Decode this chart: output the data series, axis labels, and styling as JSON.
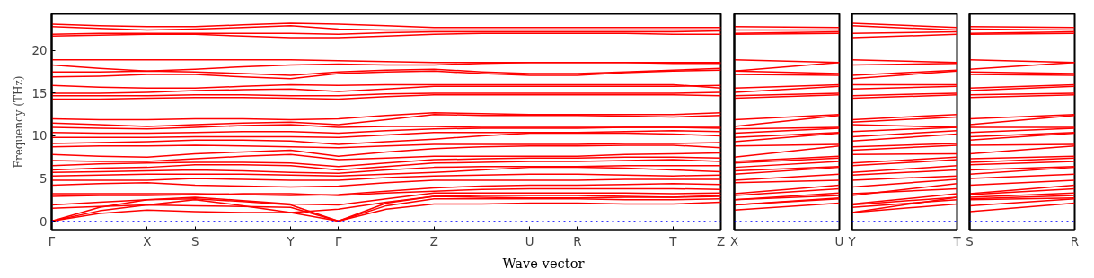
{
  "chart_data": [
    {
      "type": "line",
      "ylabel": "Frequency (THz)",
      "xlabel": "Wave vector",
      "ylim": [
        -1.05,
        24.3
      ],
      "yticks": [
        0,
        5,
        10,
        15,
        20
      ],
      "categories": [
        "Γ",
        null,
        "X",
        "S",
        null,
        "Y",
        "Γ",
        null,
        "Z",
        null,
        "U",
        "R",
        null,
        "T",
        "Z"
      ],
      "ref_lines": [
        {
          "axis": "y",
          "value": 0,
          "color": "#0000ff",
          "line_style": "dotted"
        }
      ],
      "series": [
        {
          "color": "#ff0000",
          "values": [
            0,
            0.9,
            1.3,
            1.1,
            1.0,
            1.0,
            0,
            1.4,
            2.0,
            2.0,
            2.1,
            2.1,
            2.0,
            2.0,
            2.2
          ]
        },
        {
          "color": "#ff0000",
          "values": [
            0,
            1.2,
            1.9,
            1.8,
            1.7,
            1.6,
            0,
            1.8,
            2.6,
            2.6,
            2.6,
            2.6,
            2.5,
            2.5,
            2.6
          ]
        },
        {
          "color": "#ff0000",
          "values": [
            0,
            1.6,
            2.5,
            2.6,
            2.3,
            1.9,
            0,
            2.1,
            2.9,
            3.0,
            3.0,
            3.0,
            2.9,
            2.8,
            2.9
          ]
        },
        {
          "color": "#ff0000",
          "values": [
            1.5,
            1.7,
            1.9,
            2.5,
            1.8,
            1.0,
            1.4,
            2.2,
            2.9,
            2.8,
            2.7,
            2.7,
            2.8,
            2.8,
            3.0
          ]
        },
        {
          "color": "#ff0000",
          "values": [
            1.9,
            2.2,
            2.5,
            2.8,
            2.4,
            2.0,
            1.9,
            2.6,
            3.3,
            3.3,
            3.3,
            3.3,
            3.3,
            3.2,
            3.3
          ]
        },
        {
          "color": "#ff0000",
          "values": [
            2.9,
            3.0,
            3.0,
            3.1,
            3.2,
            3.2,
            3.0,
            3.3,
            3.5,
            3.7,
            3.8,
            3.8,
            3.8,
            3.8,
            3.7
          ]
        },
        {
          "color": "#ff0000",
          "values": [
            3.2,
            3.2,
            3.2,
            3.2,
            3.1,
            3.0,
            3.1,
            3.5,
            3.9,
            4.1,
            4.2,
            4.2,
            4.3,
            4.4,
            4.3
          ]
        },
        {
          "color": "#ff0000",
          "values": [
            4.2,
            4.4,
            4.5,
            4.2,
            4.1,
            4.0,
            4.1,
            4.5,
            4.8,
            4.8,
            4.8,
            4.8,
            4.9,
            4.9,
            4.9
          ]
        },
        {
          "color": "#ff0000",
          "values": [
            4.8,
            4.8,
            4.8,
            5.0,
            4.9,
            4.8,
            4.8,
            5.1,
            5.3,
            5.4,
            5.5,
            5.5,
            5.4,
            5.3,
            5.4
          ]
        },
        {
          "color": "#ff0000",
          "values": [
            5.3,
            5.4,
            5.5,
            5.5,
            5.5,
            5.4,
            5.3,
            5.5,
            5.7,
            6.0,
            6.3,
            6.3,
            6.2,
            6.0,
            5.8
          ]
        },
        {
          "color": "#ff0000",
          "values": [
            5.7,
            5.8,
            5.9,
            6.0,
            5.9,
            5.7,
            5.6,
            6.0,
            6.3,
            6.4,
            6.4,
            6.4,
            6.5,
            6.5,
            6.5
          ]
        },
        {
          "color": "#ff0000",
          "values": [
            6.0,
            6.2,
            6.3,
            6.6,
            6.6,
            6.5,
            6.0,
            6.4,
            6.8,
            6.9,
            7.0,
            7.0,
            7.1,
            7.2,
            7.0
          ]
        },
        {
          "color": "#ff0000",
          "values": [
            6.5,
            6.7,
            6.8,
            6.9,
            6.9,
            6.8,
            6.4,
            6.8,
            7.2,
            7.3,
            7.4,
            7.4,
            7.5,
            7.5,
            7.4
          ]
        },
        {
          "color": "#ff0000",
          "values": [
            7.1,
            7.0,
            7.0,
            7.3,
            7.6,
            7.8,
            7.2,
            7.4,
            7.6,
            7.6,
            7.6,
            7.6,
            7.8,
            7.9,
            8.0
          ]
        },
        {
          "color": "#ff0000",
          "values": [
            7.8,
            7.6,
            7.5,
            7.9,
            8.1,
            8.3,
            7.6,
            8.1,
            8.5,
            8.7,
            8.8,
            8.8,
            8.9,
            8.9,
            8.6
          ]
        },
        {
          "color": "#ff0000",
          "values": [
            8.7,
            8.8,
            8.8,
            8.9,
            8.8,
            8.7,
            8.6,
            8.8,
            9.0,
            9.0,
            9.0,
            9.0,
            9.1,
            9.1,
            9.2
          ]
        },
        {
          "color": "#ff0000",
          "values": [
            9.1,
            9.2,
            9.3,
            9.5,
            9.5,
            9.4,
            9.0,
            9.3,
            9.6,
            10.0,
            10.3,
            10.3,
            10.3,
            10.2,
            10.0
          ]
        },
        {
          "color": "#ff0000",
          "values": [
            9.8,
            9.8,
            9.8,
            9.9,
            9.9,
            9.9,
            9.8,
            10.1,
            10.4,
            10.4,
            10.4,
            10.4,
            10.5,
            10.6,
            10.5
          ]
        },
        {
          "color": "#ff0000",
          "values": [
            10.4,
            10.3,
            10.3,
            10.4,
            10.5,
            10.5,
            10.3,
            10.6,
            10.8,
            10.9,
            10.9,
            10.9,
            11.0,
            11.0,
            10.9
          ]
        },
        {
          "color": "#ff0000",
          "values": [
            11.0,
            10.9,
            10.8,
            11.0,
            11.2,
            11.3,
            11.0,
            11.1,
            11.1,
            11.0,
            11.0,
            11.0,
            11.0,
            11.0,
            11.0
          ]
        },
        {
          "color": "#ff0000",
          "values": [
            11.5,
            11.3,
            11.1,
            11.3,
            11.5,
            11.6,
            11.3,
            11.9,
            12.5,
            12.4,
            12.4,
            12.4,
            12.3,
            12.2,
            12.4
          ]
        },
        {
          "color": "#ff0000",
          "values": [
            12.0,
            11.9,
            11.9,
            12.0,
            12.0,
            11.9,
            12.0,
            12.4,
            12.7,
            12.6,
            12.5,
            12.5,
            12.5,
            12.5,
            12.7
          ]
        },
        {
          "color": "#ff0000",
          "values": [
            14.3,
            14.3,
            14.4,
            14.5,
            14.5,
            14.4,
            14.3,
            14.6,
            14.8,
            14.8,
            14.8,
            14.8,
            14.8,
            14.8,
            14.7
          ]
        },
        {
          "color": "#ff0000",
          "values": [
            14.7,
            14.7,
            14.7,
            14.8,
            14.8,
            14.7,
            14.7,
            14.9,
            15.0,
            15.0,
            15.0,
            15.0,
            15.0,
            15.0,
            15.1
          ]
        },
        {
          "color": "#ff0000",
          "values": [
            15.0,
            15.0,
            15.1,
            15.3,
            15.4,
            15.5,
            15.2,
            15.5,
            15.8,
            15.8,
            15.8,
            15.8,
            15.8,
            15.8,
            15.9
          ]
        },
        {
          "color": "#ff0000",
          "values": [
            15.9,
            15.7,
            15.6,
            15.6,
            15.8,
            16.0,
            15.9,
            16.0,
            16.0,
            16.0,
            16.0,
            16.0,
            16.0,
            16.0,
            15.6
          ]
        },
        {
          "color": "#ff0000",
          "values": [
            16.9,
            17.0,
            17.2,
            17.2,
            16.9,
            16.7,
            17.3,
            17.5,
            17.6,
            17.3,
            17.1,
            17.1,
            17.4,
            17.6,
            17.7
          ]
        },
        {
          "color": "#ff0000",
          "values": [
            17.5,
            17.5,
            17.6,
            17.5,
            17.3,
            17.1,
            17.5,
            17.7,
            17.8,
            17.5,
            17.3,
            17.3,
            17.5,
            17.7,
            17.9
          ]
        },
        {
          "color": "#ff0000",
          "values": [
            18.3,
            17.9,
            17.6,
            17.8,
            18.1,
            18.3,
            18.4,
            18.3,
            18.3,
            18.5,
            18.6,
            18.6,
            18.6,
            18.5,
            18.5
          ]
        },
        {
          "color": "#ff0000",
          "values": [
            18.9,
            18.9,
            18.9,
            18.9,
            18.9,
            18.9,
            18.8,
            18.7,
            18.6,
            18.6,
            18.6,
            18.6,
            18.6,
            18.6,
            18.6
          ]
        },
        {
          "color": "#ff0000",
          "values": [
            21.7,
            21.8,
            21.9,
            21.9,
            21.7,
            21.5,
            21.5,
            21.7,
            21.9,
            22.0,
            22.0,
            22.0,
            22.0,
            21.9,
            21.9
          ]
        },
        {
          "color": "#ff0000",
          "values": [
            21.9,
            22.0,
            22.0,
            22.0,
            22.0,
            22.0,
            21.9,
            22.1,
            22.2,
            22.2,
            22.2,
            22.2,
            22.2,
            22.2,
            22.3
          ]
        },
        {
          "color": "#ff0000",
          "values": [
            22.8,
            22.6,
            22.4,
            22.5,
            22.7,
            22.9,
            22.5,
            22.4,
            22.4,
            22.4,
            22.4,
            22.4,
            22.4,
            22.4,
            22.4
          ]
        },
        {
          "color": "#ff0000",
          "values": [
            23.1,
            22.9,
            22.8,
            22.8,
            23.0,
            23.2,
            23.1,
            22.9,
            22.7,
            22.7,
            22.7,
            22.7,
            22.7,
            22.7,
            22.7
          ]
        }
      ]
    },
    {
      "type": "line",
      "tick_labels": "x",
      "ylim": [
        -1.05,
        24.3
      ],
      "yticks": [
        0,
        5,
        10,
        15,
        20
      ],
      "categories": [
        "X",
        "U"
      ],
      "ref_lines": [
        {
          "axis": "y",
          "value": 0,
          "color": "#0000ff",
          "line_style": "dotted"
        }
      ],
      "series": [
        {
          "color": "#ff0000",
          "values": [
            1.3,
            2.1
          ]
        },
        {
          "color": "#ff0000",
          "values": [
            1.9,
            2.6
          ]
        },
        {
          "color": "#ff0000",
          "values": [
            2.5,
            3.0
          ]
        },
        {
          "color": "#ff0000",
          "values": [
            1.9,
            2.7
          ]
        },
        {
          "color": "#ff0000",
          "values": [
            2.5,
            3.3
          ]
        },
        {
          "color": "#ff0000",
          "values": [
            3.0,
            3.8
          ]
        },
        {
          "color": "#ff0000",
          "values": [
            3.2,
            4.2
          ]
        },
        {
          "color": "#ff0000",
          "values": [
            4.5,
            4.8
          ]
        },
        {
          "color": "#ff0000",
          "values": [
            4.8,
            5.5
          ]
        },
        {
          "color": "#ff0000",
          "values": [
            5.5,
            6.3
          ]
        },
        {
          "color": "#ff0000",
          "values": [
            5.9,
            6.4
          ]
        },
        {
          "color": "#ff0000",
          "values": [
            6.3,
            7.0
          ]
        },
        {
          "color": "#ff0000",
          "values": [
            6.8,
            7.4
          ]
        },
        {
          "color": "#ff0000",
          "values": [
            7.0,
            7.6
          ]
        },
        {
          "color": "#ff0000",
          "values": [
            7.5,
            8.8
          ]
        },
        {
          "color": "#ff0000",
          "values": [
            8.8,
            9.0
          ]
        },
        {
          "color": "#ff0000",
          "values": [
            9.3,
            10.3
          ]
        },
        {
          "color": "#ff0000",
          "values": [
            9.8,
            10.4
          ]
        },
        {
          "color": "#ff0000",
          "values": [
            10.3,
            10.9
          ]
        },
        {
          "color": "#ff0000",
          "values": [
            10.8,
            11.0
          ]
        },
        {
          "color": "#ff0000",
          "values": [
            11.1,
            12.4
          ]
        },
        {
          "color": "#ff0000",
          "values": [
            11.9,
            12.5
          ]
        },
        {
          "color": "#ff0000",
          "values": [
            14.4,
            14.8
          ]
        },
        {
          "color": "#ff0000",
          "values": [
            14.7,
            15.0
          ]
        },
        {
          "color": "#ff0000",
          "values": [
            15.1,
            15.8
          ]
        },
        {
          "color": "#ff0000",
          "values": [
            15.6,
            16.0
          ]
        },
        {
          "color": "#ff0000",
          "values": [
            17.2,
            17.1
          ]
        },
        {
          "color": "#ff0000",
          "values": [
            17.6,
            17.3
          ]
        },
        {
          "color": "#ff0000",
          "values": [
            17.6,
            18.6
          ]
        },
        {
          "color": "#ff0000",
          "values": [
            18.9,
            18.6
          ]
        },
        {
          "color": "#ff0000",
          "values": [
            21.9,
            22.0
          ]
        },
        {
          "color": "#ff0000",
          "values": [
            22.0,
            22.2
          ]
        },
        {
          "color": "#ff0000",
          "values": [
            22.4,
            22.4
          ]
        },
        {
          "color": "#ff0000",
          "values": [
            22.8,
            22.7
          ]
        }
      ]
    },
    {
      "type": "line",
      "tick_labels": "x",
      "ylim": [
        -1.05,
        24.3
      ],
      "yticks": [
        0,
        5,
        10,
        15,
        20
      ],
      "categories": [
        "Y",
        "T"
      ],
      "ref_lines": [
        {
          "axis": "y",
          "value": 0,
          "color": "#0000ff",
          "line_style": "dotted"
        }
      ],
      "series": [
        {
          "color": "#ff0000",
          "values": [
            1.0,
            2.0
          ]
        },
        {
          "color": "#ff0000",
          "values": [
            1.6,
            2.5
          ]
        },
        {
          "color": "#ff0000",
          "values": [
            1.9,
            2.8
          ]
        },
        {
          "color": "#ff0000",
          "values": [
            1.0,
            2.8
          ]
        },
        {
          "color": "#ff0000",
          "values": [
            2.0,
            3.2
          ]
        },
        {
          "color": "#ff0000",
          "values": [
            3.2,
            3.8
          ]
        },
        {
          "color": "#ff0000",
          "values": [
            3.0,
            4.4
          ]
        },
        {
          "color": "#ff0000",
          "values": [
            4.0,
            4.9
          ]
        },
        {
          "color": "#ff0000",
          "values": [
            4.8,
            5.3
          ]
        },
        {
          "color": "#ff0000",
          "values": [
            5.4,
            6.0
          ]
        },
        {
          "color": "#ff0000",
          "values": [
            5.7,
            6.5
          ]
        },
        {
          "color": "#ff0000",
          "values": [
            6.5,
            7.2
          ]
        },
        {
          "color": "#ff0000",
          "values": [
            6.8,
            7.5
          ]
        },
        {
          "color": "#ff0000",
          "values": [
            7.8,
            7.9
          ]
        },
        {
          "color": "#ff0000",
          "values": [
            8.3,
            8.9
          ]
        },
        {
          "color": "#ff0000",
          "values": [
            8.7,
            9.1
          ]
        },
        {
          "color": "#ff0000",
          "values": [
            9.4,
            10.2
          ]
        },
        {
          "color": "#ff0000",
          "values": [
            9.9,
            10.6
          ]
        },
        {
          "color": "#ff0000",
          "values": [
            10.5,
            11.0
          ]
        },
        {
          "color": "#ff0000",
          "values": [
            11.3,
            11.0
          ]
        },
        {
          "color": "#ff0000",
          "values": [
            11.6,
            12.2
          ]
        },
        {
          "color": "#ff0000",
          "values": [
            11.9,
            12.5
          ]
        },
        {
          "color": "#ff0000",
          "values": [
            14.4,
            14.8
          ]
        },
        {
          "color": "#ff0000",
          "values": [
            14.7,
            15.0
          ]
        },
        {
          "color": "#ff0000",
          "values": [
            15.5,
            15.8
          ]
        },
        {
          "color": "#ff0000",
          "values": [
            16.0,
            16.0
          ]
        },
        {
          "color": "#ff0000",
          "values": [
            16.7,
            17.6
          ]
        },
        {
          "color": "#ff0000",
          "values": [
            17.1,
            17.7
          ]
        },
        {
          "color": "#ff0000",
          "values": [
            18.3,
            18.5
          ]
        },
        {
          "color": "#ff0000",
          "values": [
            18.9,
            18.6
          ]
        },
        {
          "color": "#ff0000",
          "values": [
            21.5,
            21.9
          ]
        },
        {
          "color": "#ff0000",
          "values": [
            22.0,
            22.2
          ]
        },
        {
          "color": "#ff0000",
          "values": [
            22.9,
            22.4
          ]
        },
        {
          "color": "#ff0000",
          "values": [
            23.2,
            22.7
          ]
        }
      ]
    },
    {
      "type": "line",
      "tick_labels": "x",
      "ylim": [
        -1.05,
        24.3
      ],
      "yticks": [
        0,
        5,
        10,
        15,
        20
      ],
      "categories": [
        "S",
        "R"
      ],
      "ref_lines": [
        {
          "axis": "y",
          "value": 0,
          "color": "#0000ff",
          "line_style": "dotted"
        }
      ],
      "series": [
        {
          "color": "#ff0000",
          "values": [
            1.1,
            2.1
          ]
        },
        {
          "color": "#ff0000",
          "values": [
            1.8,
            2.6
          ]
        },
        {
          "color": "#ff0000",
          "values": [
            2.6,
            3.0
          ]
        },
        {
          "color": "#ff0000",
          "values": [
            2.5,
            2.7
          ]
        },
        {
          "color": "#ff0000",
          "values": [
            2.8,
            3.3
          ]
        },
        {
          "color": "#ff0000",
          "values": [
            3.1,
            3.8
          ]
        },
        {
          "color": "#ff0000",
          "values": [
            3.2,
            4.2
          ]
        },
        {
          "color": "#ff0000",
          "values": [
            4.2,
            4.8
          ]
        },
        {
          "color": "#ff0000",
          "values": [
            5.0,
            5.5
          ]
        },
        {
          "color": "#ff0000",
          "values": [
            5.5,
            6.3
          ]
        },
        {
          "color": "#ff0000",
          "values": [
            6.0,
            6.4
          ]
        },
        {
          "color": "#ff0000",
          "values": [
            6.6,
            7.0
          ]
        },
        {
          "color": "#ff0000",
          "values": [
            6.9,
            7.4
          ]
        },
        {
          "color": "#ff0000",
          "values": [
            7.3,
            7.6
          ]
        },
        {
          "color": "#ff0000",
          "values": [
            7.9,
            8.8
          ]
        },
        {
          "color": "#ff0000",
          "values": [
            8.9,
            9.0
          ]
        },
        {
          "color": "#ff0000",
          "values": [
            9.5,
            10.3
          ]
        },
        {
          "color": "#ff0000",
          "values": [
            9.9,
            10.4
          ]
        },
        {
          "color": "#ff0000",
          "values": [
            10.4,
            10.9
          ]
        },
        {
          "color": "#ff0000",
          "values": [
            11.0,
            11.0
          ]
        },
        {
          "color": "#ff0000",
          "values": [
            11.3,
            12.4
          ]
        },
        {
          "color": "#ff0000",
          "values": [
            12.0,
            12.5
          ]
        },
        {
          "color": "#ff0000",
          "values": [
            14.5,
            14.8
          ]
        },
        {
          "color": "#ff0000",
          "values": [
            14.8,
            15.0
          ]
        },
        {
          "color": "#ff0000",
          "values": [
            15.3,
            15.8
          ]
        },
        {
          "color": "#ff0000",
          "values": [
            15.6,
            16.0
          ]
        },
        {
          "color": "#ff0000",
          "values": [
            17.2,
            17.1
          ]
        },
        {
          "color": "#ff0000",
          "values": [
            17.5,
            17.3
          ]
        },
        {
          "color": "#ff0000",
          "values": [
            17.8,
            18.6
          ]
        },
        {
          "color": "#ff0000",
          "values": [
            18.9,
            18.6
          ]
        },
        {
          "color": "#ff0000",
          "values": [
            21.9,
            22.0
          ]
        },
        {
          "color": "#ff0000",
          "values": [
            22.0,
            22.2
          ]
        },
        {
          "color": "#ff0000",
          "values": [
            22.5,
            22.4
          ]
        },
        {
          "color": "#ff0000",
          "values": [
            22.8,
            22.7
          ]
        }
      ]
    }
  ]
}
